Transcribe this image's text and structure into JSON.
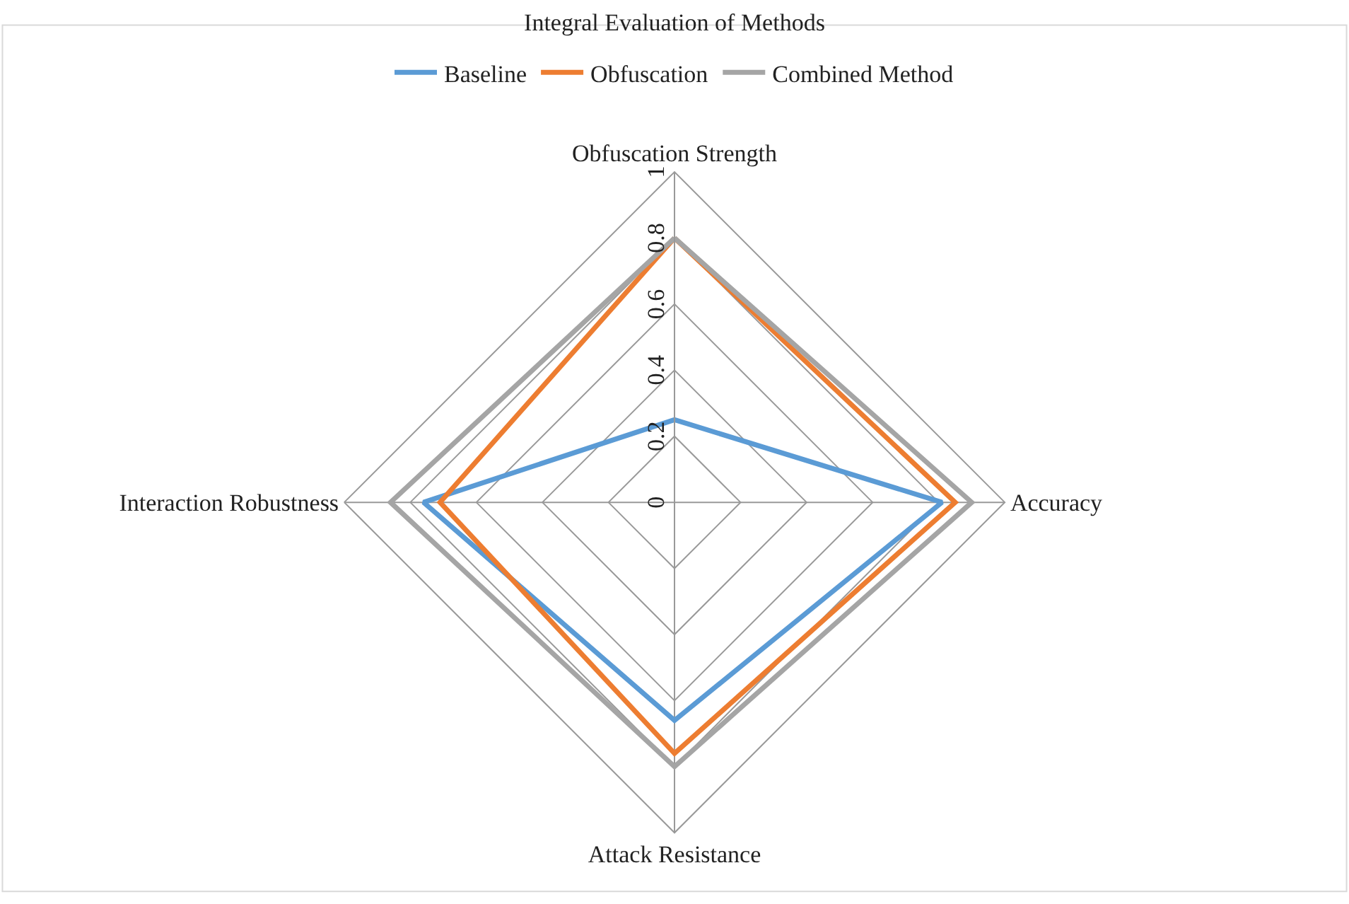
{
  "chart_data": {
    "type": "radar",
    "title": "Integral Evaluation of Methods",
    "categories": [
      "Obfuscation Strength",
      "Accuracy",
      "Attack Resistance",
      "Interaction Robustness"
    ],
    "series": [
      {
        "name": "Baseline",
        "color": "#5b9bd5",
        "values": [
          0.25,
          0.81,
          0.66,
          0.76
        ]
      },
      {
        "name": "Obfuscation",
        "color": "#ed7d31",
        "values": [
          0.8,
          0.85,
          0.76,
          0.71
        ]
      },
      {
        "name": "Combined Method",
        "color": "#a5a5a5",
        "values": [
          0.8,
          0.9,
          0.8,
          0.86
        ]
      }
    ],
    "ylim": [
      0,
      1
    ],
    "yticks": [
      0,
      0.2,
      0.4,
      0.6,
      0.8,
      1
    ],
    "grid": true,
    "legend": "top",
    "marker": "none",
    "line_style": "solid"
  }
}
